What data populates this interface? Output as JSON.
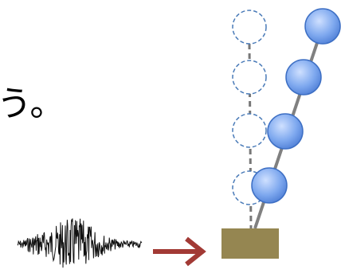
{
  "text": "う。"
}
